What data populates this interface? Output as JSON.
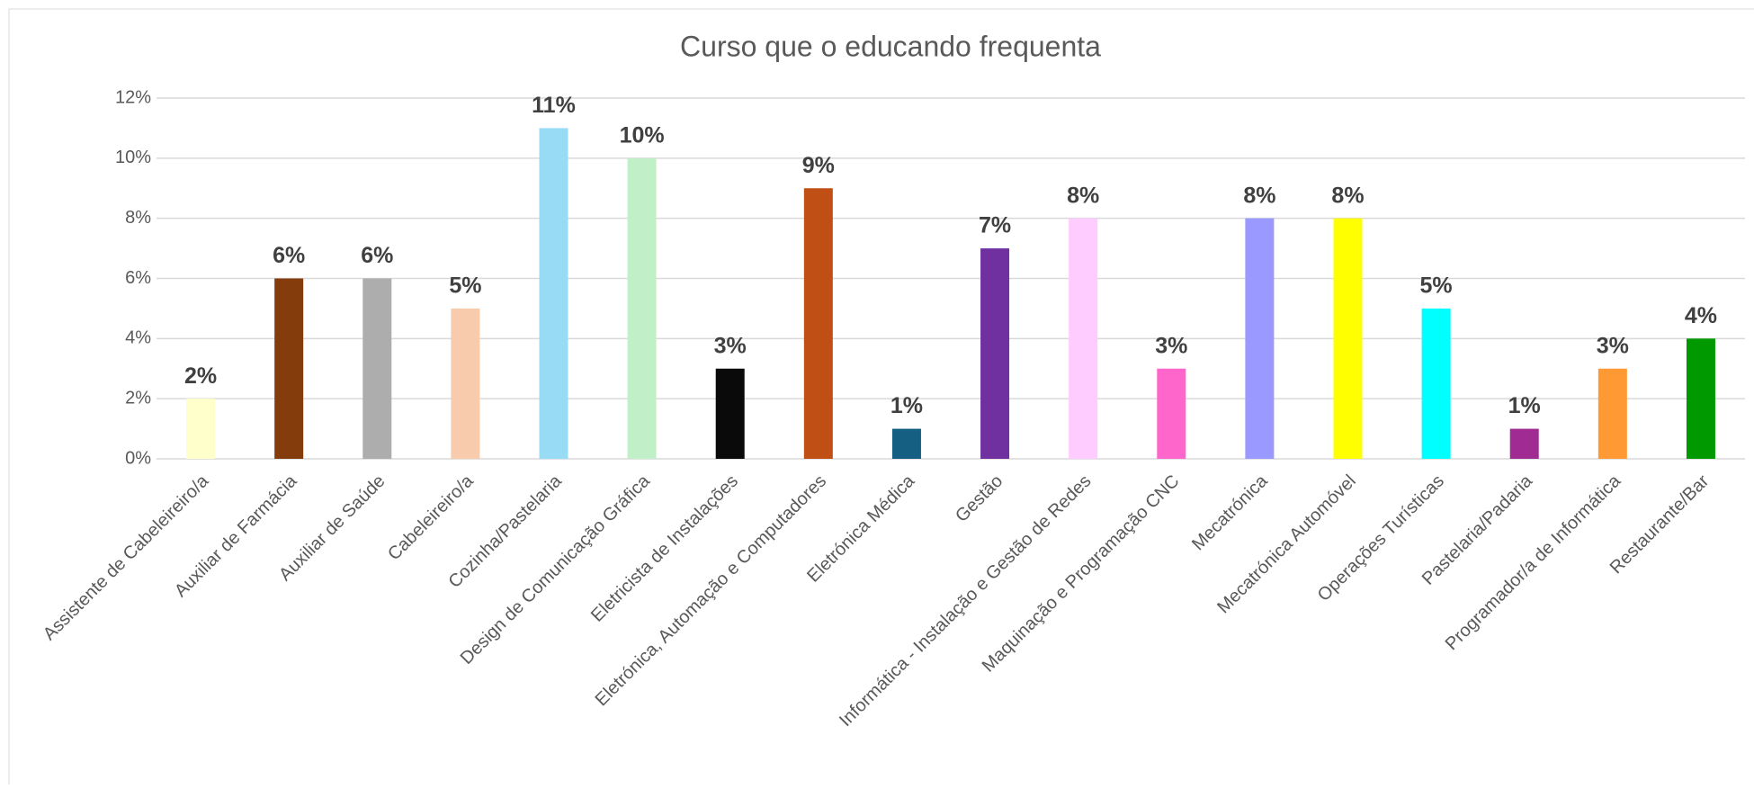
{
  "chart_data": {
    "type": "bar",
    "title": "Curso que o educando frequenta",
    "categories": [
      "Assistente de Cabeleireiro/a",
      "Auxiliar de Farmácia",
      "Auxiliar de Saúde",
      "Cabeleireiro/a",
      "Cozinha/Pastelaria",
      "Design de Comunicação Gráfica",
      "Eletricista de Instalações",
      "Eletrónica, Automação e Computadores",
      "Eletrónica Médica",
      "Gestão",
      "Informática - Instalação e Gestão de Redes",
      "Maquinação e Programação CNC",
      "Mecatrónica",
      "Mecatrónica Automóvel",
      "Operações Turísticas",
      "Pastelaria/Padaria",
      "Programador/a de Informática",
      "Restaurante/Bar"
    ],
    "values": [
      2,
      6,
      6,
      5,
      11,
      10,
      3,
      9,
      1,
      7,
      8,
      3,
      8,
      8,
      5,
      1,
      3,
      4
    ],
    "value_labels": [
      "2%",
      "6%",
      "6%",
      "5%",
      "11%",
      "10%",
      "3%",
      "9%",
      "1%",
      "7%",
      "8%",
      "3%",
      "8%",
      "8%",
      "5%",
      "1%",
      "3%",
      "4%"
    ],
    "colors": [
      "#FFFFCC",
      "#843C0C",
      "#ADADAD",
      "#F8CBAD",
      "#97DBF5",
      "#C1F0C8",
      "#0A0A0A",
      "#C04F15",
      "#156082",
      "#7030A0",
      "#FFCCFF",
      "#FF66CC",
      "#9999FF",
      "#FFFF00",
      "#00FFFF",
      "#A02B93",
      "#FF9933",
      "#009900"
    ],
    "ylim": [
      0,
      12
    ],
    "yticks": [
      {
        "value": 0,
        "label": "0%"
      },
      {
        "value": 2,
        "label": "2%"
      },
      {
        "value": 4,
        "label": "4%"
      },
      {
        "value": 6,
        "label": "6%"
      },
      {
        "value": 8,
        "label": "8%"
      },
      {
        "value": 10,
        "label": "10%"
      },
      {
        "value": 12,
        "label": "12%"
      }
    ],
    "grid": true
  }
}
